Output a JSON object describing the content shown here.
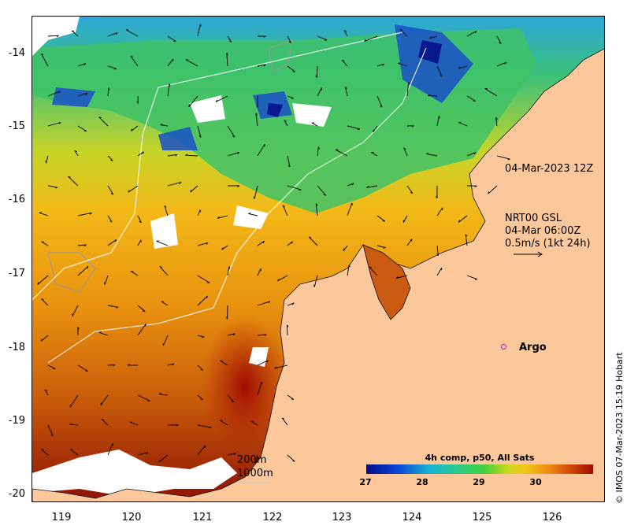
{
  "axes": {
    "y_ticks": [
      "-14",
      "-15",
      "-16",
      "-17",
      "-18",
      "-19",
      "-20"
    ],
    "x_ticks": [
      "119",
      "120",
      "121",
      "122",
      "123",
      "124",
      "125",
      "126"
    ]
  },
  "annotations": {
    "time_label": "04-Mar-2023 12Z",
    "current_info": "NRT00 GSL\n04-Mar 06:00Z\n0.5m/s (1kt 24h)",
    "argo_label": "Argo",
    "isobath_200": "200m",
    "isobath_1000": "1000m"
  },
  "colorbar": {
    "title": "4h comp, p50, All Sats",
    "ticks": [
      "27",
      "28",
      "29",
      "30"
    ],
    "min": 27,
    "max": 30.9
  },
  "credit": "© IMOS 07-Mar-2023 15:19 Hobart",
  "colors": {
    "land": "#fbc79b",
    "argo": "#e000e0",
    "cold": "#000a8c",
    "warm": "#9c0e04"
  },
  "icons": {
    "current_arrows": "arrow-field",
    "argo_marker": "circle-marker"
  }
}
